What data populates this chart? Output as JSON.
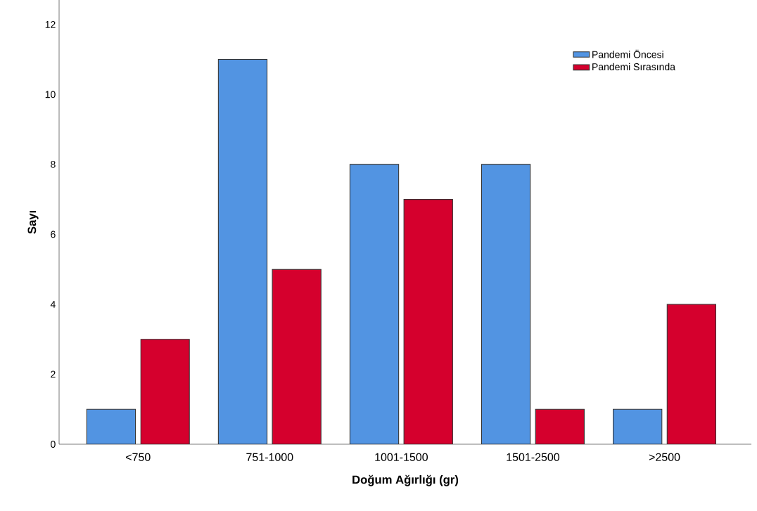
{
  "chart_data": {
    "type": "bar",
    "xlabel": "Doğum Ağırlığı (gr)",
    "ylabel": "Sayı",
    "categories": [
      "<750",
      "751-1000",
      "1001-1500",
      "1501-2500",
      ">2500"
    ],
    "series": [
      {
        "name": "Pandemi Öncesi",
        "color": "#5294e2",
        "values": [
          1,
          11,
          8,
          8,
          1
        ]
      },
      {
        "name": "Pandemi Sırasında",
        "color": "#d5002d",
        "values": [
          3,
          5,
          7,
          1,
          4
        ]
      }
    ],
    "ylim": [
      0,
      12.7
    ],
    "yticks": [
      0,
      2,
      4,
      6,
      8,
      10,
      12
    ],
    "legend": "top right"
  }
}
